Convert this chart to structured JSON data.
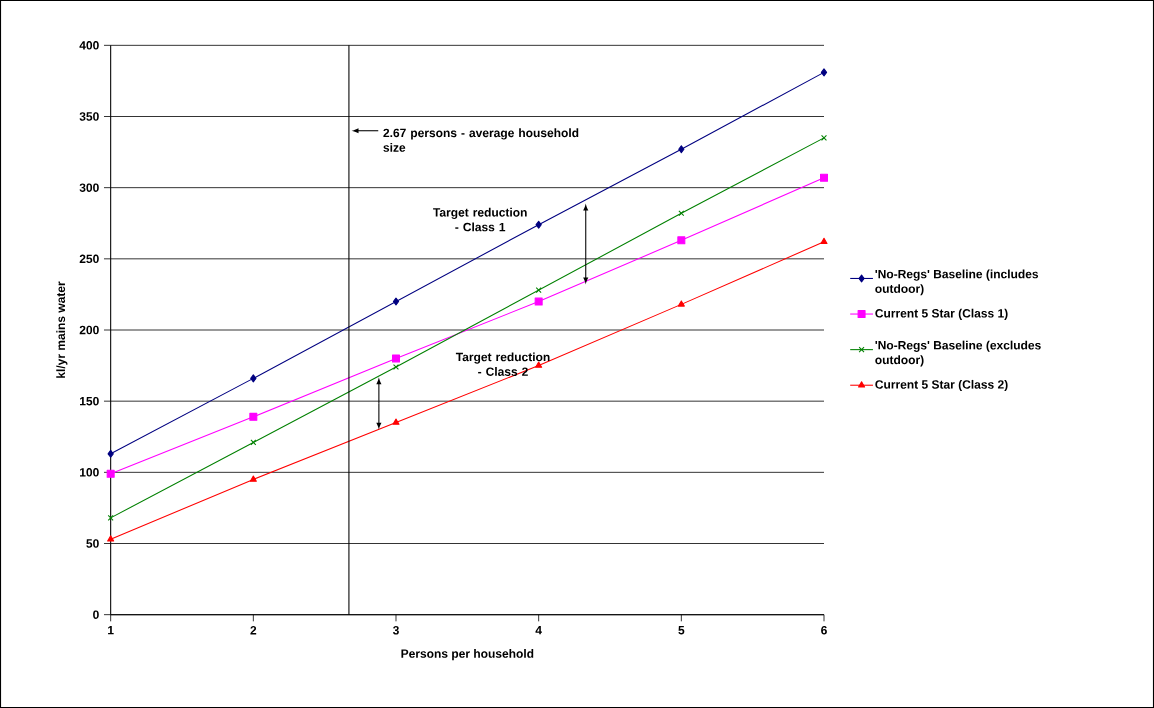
{
  "chart_data": {
    "type": "line",
    "xlabel": "Persons per household",
    "ylabel": "kl/yr mains water",
    "x": [
      1,
      2,
      3,
      4,
      5,
      6
    ],
    "series": [
      {
        "name": "'No-Regs' Baseline (includes outdoor)",
        "color": "#000080",
        "marker": "diamond",
        "values": [
          113,
          166,
          220,
          274,
          327,
          381
        ]
      },
      {
        "name": "Current 5 Star (Class 1)",
        "color": "#ff00ff",
        "marker": "square",
        "values": [
          99,
          139,
          180,
          220,
          263,
          307
        ]
      },
      {
        "name": "'No-Regs' Baseline (excludes outdoor)",
        "color": "#008000",
        "marker": "cross",
        "values": [
          68,
          121,
          174,
          228,
          282,
          335
        ]
      },
      {
        "name": "Current 5 Star (Class 2)",
        "color": "#ff0000",
        "marker": "triangle",
        "values": [
          53,
          95,
          135,
          175,
          218,
          262
        ]
      }
    ],
    "xlim": [
      1,
      6
    ],
    "xticks": [
      1,
      2,
      3,
      4,
      5,
      6
    ],
    "ylim": [
      0,
      400
    ],
    "yticks": [
      0,
      50,
      100,
      150,
      200,
      250,
      300,
      350,
      400
    ],
    "grid": "y",
    "legend": "right",
    "line_style": "solid",
    "ref_lines": [
      {
        "axis": "x",
        "value": 2.67,
        "label": "2.67 persons - average household size",
        "color": "#000000"
      }
    ],
    "annotations": [
      "Target reduction - Class 1",
      "Target reduction - Class 2"
    ]
  }
}
